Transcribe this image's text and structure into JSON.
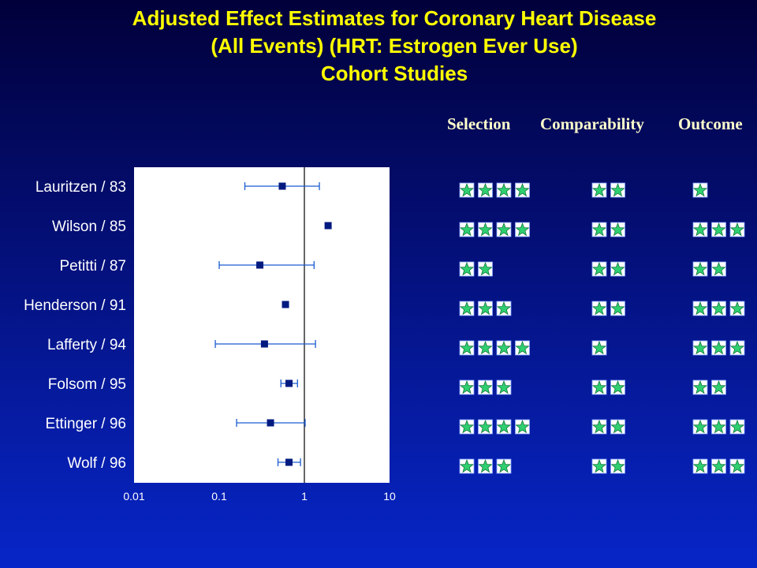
{
  "title_lines": [
    "Adjusted Effect Estimates for Coronary Heart Disease",
    "(All Events)  (HRT: Estrogen Ever Use)",
    "Cohort Studies"
  ],
  "quality_headers": [
    "Selection",
    "Comparability",
    "Outcome"
  ],
  "colors": {
    "title": "#ffff00",
    "star_fill": "#2fcf70",
    "marker": "#001a80",
    "error_bar": "#1a5bd0"
  },
  "chart_data": {
    "type": "forest",
    "x_scale": "log",
    "xlim": [
      0.01,
      10
    ],
    "x_ticks": [
      "0.01",
      "0.1",
      "1",
      "10"
    ],
    "reference_line": 1,
    "studies": [
      {
        "label": "Lauritzen / 83",
        "estimate": 0.55,
        "ci": [
          0.2,
          1.5
        ],
        "stars": {
          "selection": 4,
          "comparability": 2,
          "outcome": 1
        }
      },
      {
        "label": "Wilson / 85",
        "estimate": 1.9,
        "ci": null,
        "stars": {
          "selection": 4,
          "comparability": 2,
          "outcome": 3
        }
      },
      {
        "label": "Petitti / 87",
        "estimate": 0.3,
        "ci": [
          0.1,
          1.3
        ],
        "stars": {
          "selection": 2,
          "comparability": 2,
          "outcome": 2
        }
      },
      {
        "label": "Henderson / 91",
        "estimate": 0.6,
        "ci": null,
        "stars": {
          "selection": 3,
          "comparability": 2,
          "outcome": 3
        }
      },
      {
        "label": "Lafferty / 94",
        "estimate": 0.34,
        "ci": [
          0.09,
          1.35
        ],
        "stars": {
          "selection": 4,
          "comparability": 1,
          "outcome": 3
        }
      },
      {
        "label": "Folsom / 95",
        "estimate": 0.66,
        "ci": [
          0.53,
          0.83
        ],
        "stars": {
          "selection": 3,
          "comparability": 2,
          "outcome": 2
        }
      },
      {
        "label": "Ettinger / 96",
        "estimate": 0.4,
        "ci": [
          0.16,
          1.02
        ],
        "stars": {
          "selection": 4,
          "comparability": 2,
          "outcome": 3
        }
      },
      {
        "label": "Wolf / 96",
        "estimate": 0.66,
        "ci": [
          0.49,
          0.9
        ],
        "stars": {
          "selection": 3,
          "comparability": 2,
          "outcome": 3
        }
      }
    ]
  }
}
